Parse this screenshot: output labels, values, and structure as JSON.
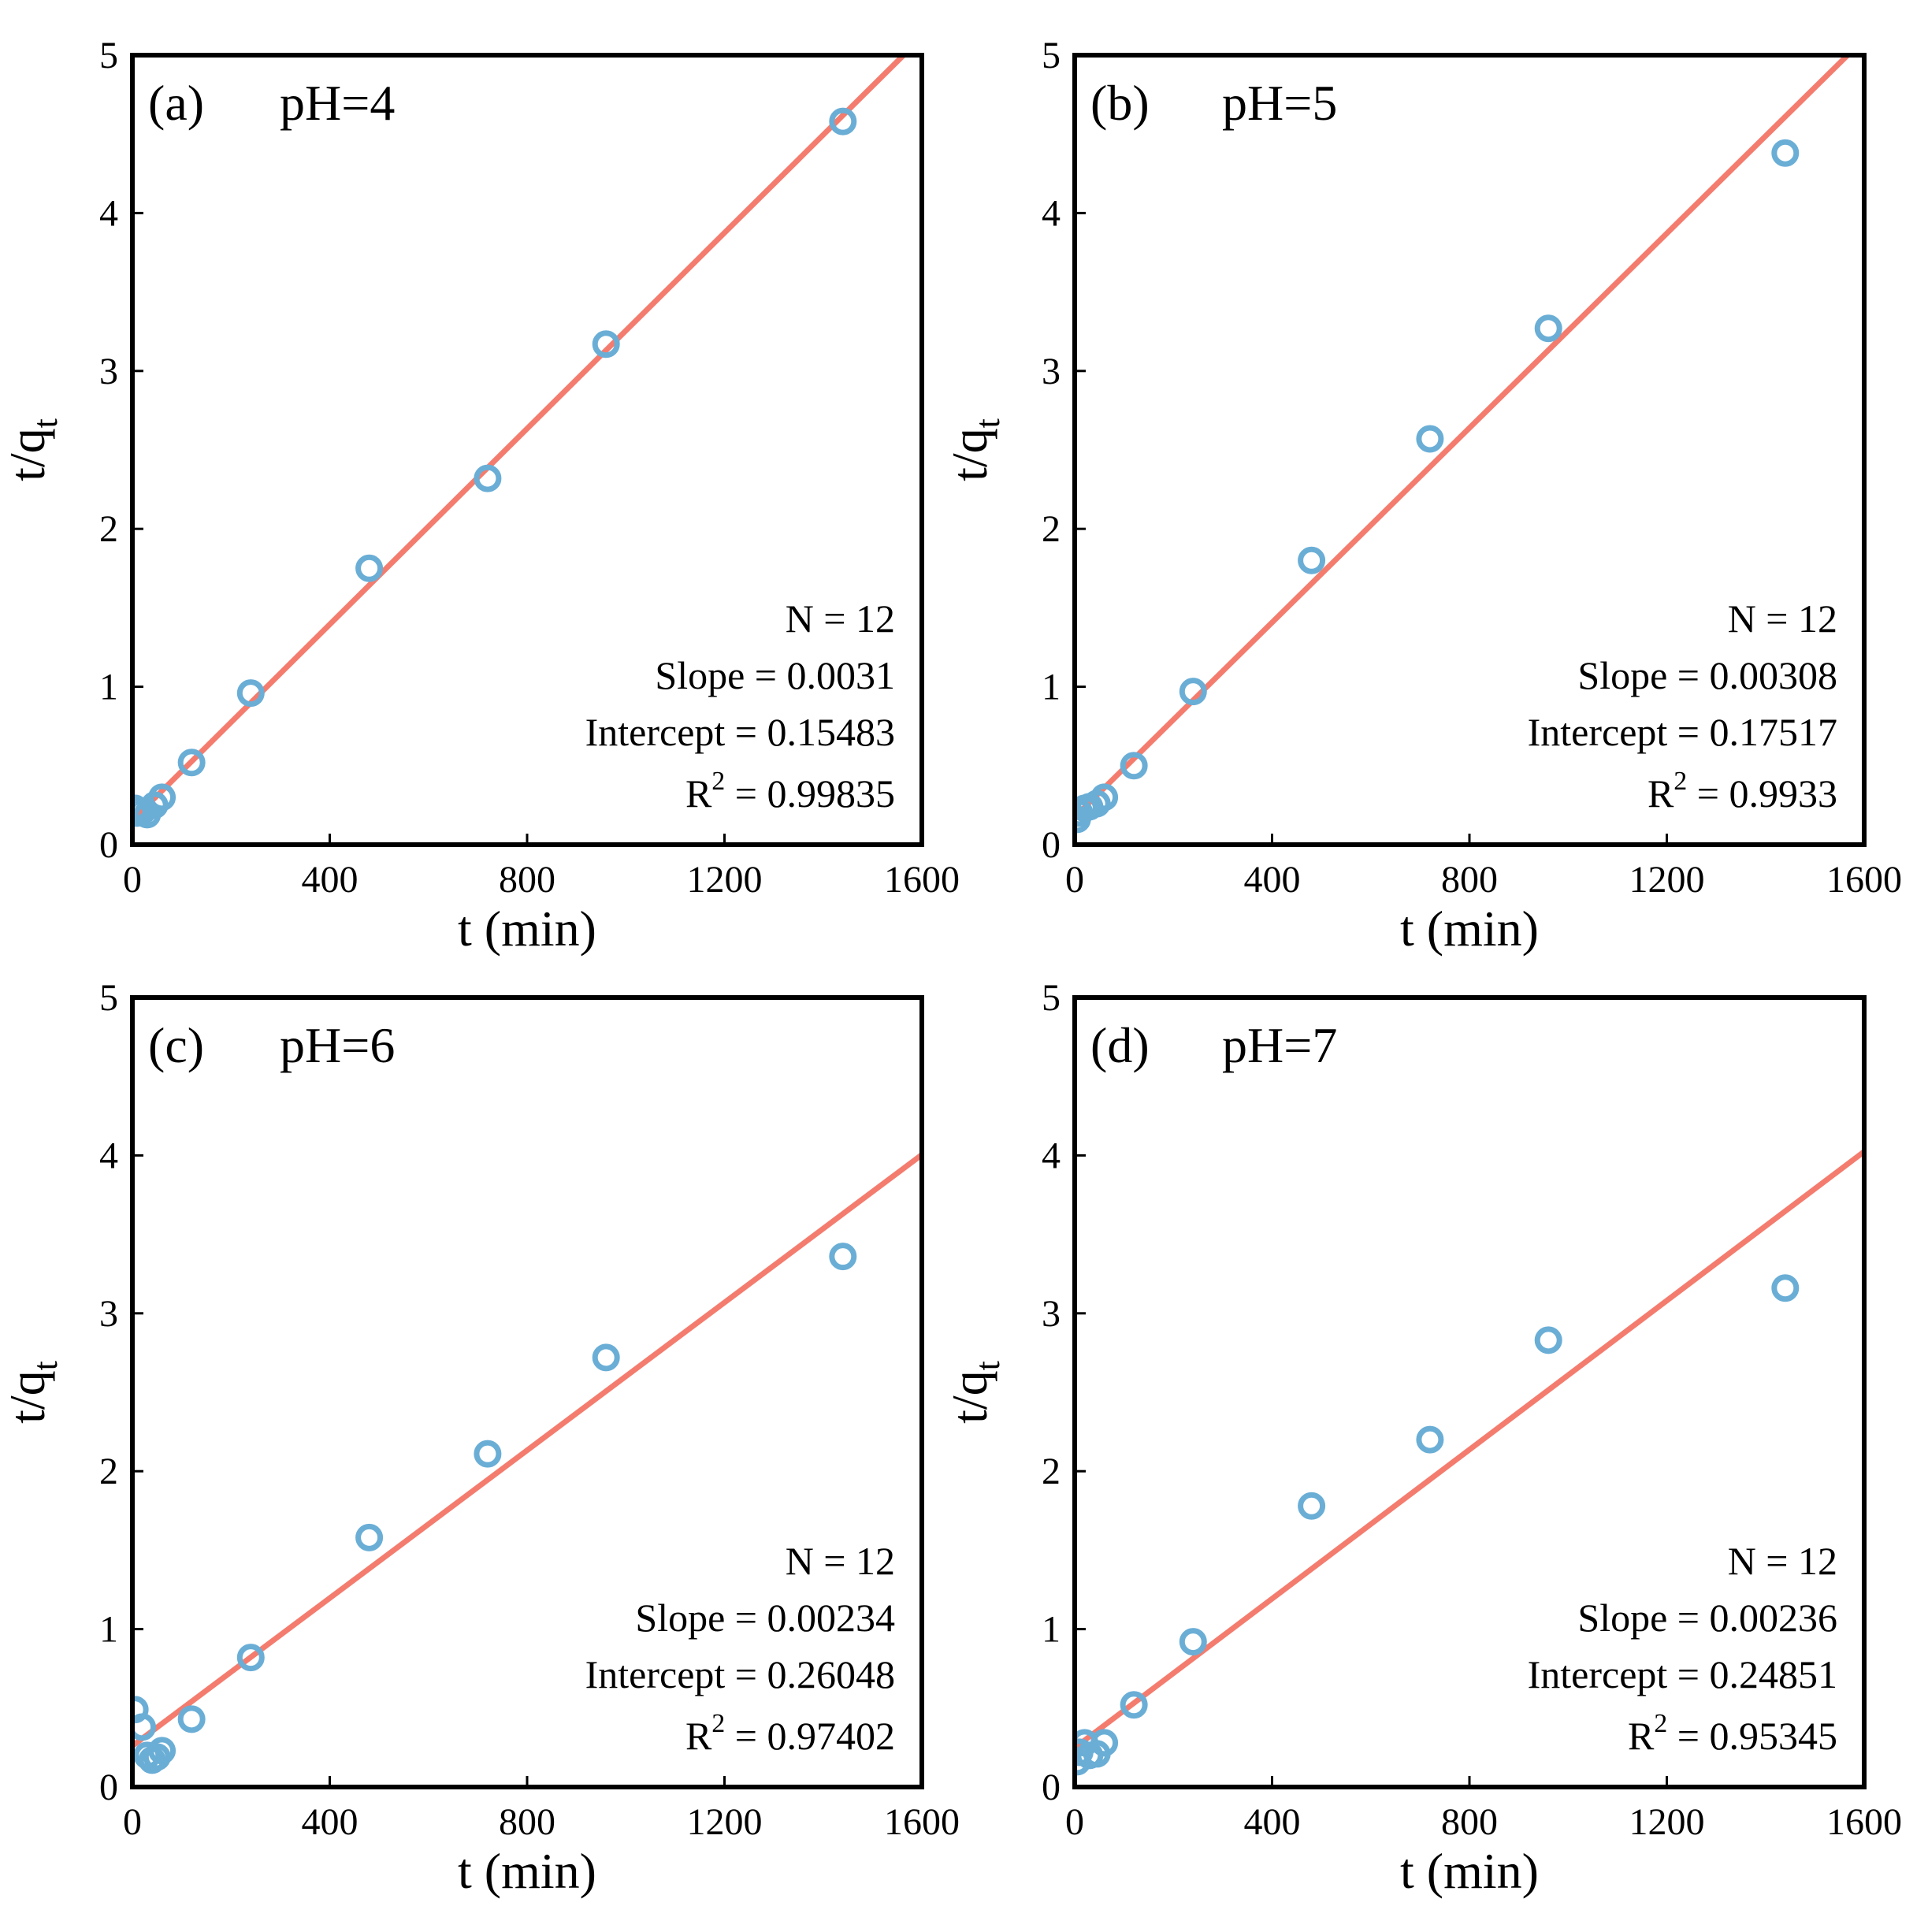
{
  "figure_title": "",
  "colors": {
    "fit_line": "#f47c6e",
    "marker": "#6aaed6",
    "axes": "#000000"
  },
  "chart_data": [
    {
      "type": "scatter",
      "panel_label": "(a)",
      "condition": "pH=4",
      "xlabel": "t (min)",
      "ylabel": "t/q",
      "ylabel_sub": "t",
      "xlim": [
        0,
        1600
      ],
      "ylim": [
        0,
        5
      ],
      "xticks": [
        "0",
        "400",
        "800",
        "1200",
        "1600"
      ],
      "yticks": [
        "0",
        "1",
        "2",
        "3",
        "4",
        "5"
      ],
      "points": {
        "x": [
          5,
          10,
          20,
          30,
          45,
          60,
          120,
          240,
          480,
          720,
          960,
          1440
        ],
        "y": [
          0.23,
          0.2,
          0.21,
          0.19,
          0.25,
          0.3,
          0.52,
          0.96,
          1.75,
          2.32,
          3.17,
          4.58
        ]
      },
      "fit": {
        "slope": 0.0031,
        "intercept": 0.15483
      },
      "stats": {
        "n": "N = 12",
        "slope": "Slope = 0.0031",
        "intercept": "Intercept = 0.15483",
        "r2_prefix": "R",
        "r2_sup": "2",
        "r2_value": " = 0.99835"
      }
    },
    {
      "type": "scatter",
      "panel_label": "(b)",
      "condition": "pH=5",
      "xlabel": "t (min)",
      "ylabel": "t/q",
      "ylabel_sub": "t",
      "xlim": [
        0,
        1600
      ],
      "ylim": [
        0,
        5
      ],
      "xticks": [
        "0",
        "400",
        "800",
        "1200",
        "1600"
      ],
      "yticks": [
        "0",
        "1",
        "2",
        "3",
        "4",
        "5"
      ],
      "points": {
        "x": [
          5,
          10,
          20,
          30,
          45,
          60,
          120,
          240,
          480,
          720,
          960,
          1440
        ],
        "y": [
          0.16,
          0.2,
          0.23,
          0.24,
          0.26,
          0.3,
          0.5,
          0.97,
          1.8,
          2.57,
          3.27,
          4.38
        ]
      },
      "fit": {
        "slope": 0.00308,
        "intercept": 0.17517
      },
      "stats": {
        "n": "N = 12",
        "slope": "Slope = 0.00308",
        "intercept": "Intercept = 0.17517",
        "r2_prefix": "R",
        "r2_sup": "2",
        "r2_value": " = 0.9933"
      }
    },
    {
      "type": "scatter",
      "panel_label": "(c)",
      "condition": "pH=6",
      "xlabel": "t (min)",
      "ylabel": "t/q",
      "ylabel_sub": "t",
      "xlim": [
        0,
        1600
      ],
      "ylim": [
        0,
        5
      ],
      "xticks": [
        "0",
        "400",
        "800",
        "1200",
        "1600"
      ],
      "yticks": [
        "0",
        "1",
        "2",
        "3",
        "4",
        "5"
      ],
      "points": {
        "x": [
          5,
          20,
          30,
          40,
          50,
          60,
          120,
          240,
          480,
          720,
          960,
          1440
        ],
        "y": [
          0.49,
          0.38,
          0.2,
          0.17,
          0.19,
          0.23,
          0.43,
          0.82,
          1.58,
          2.11,
          2.72,
          3.36
        ]
      },
      "fit": {
        "slope": 0.00234,
        "intercept": 0.26048
      },
      "stats": {
        "n": "N = 12",
        "slope": "Slope = 0.00234",
        "intercept": "Intercept = 0.26048",
        "r2_prefix": "R",
        "r2_sup": "2",
        "r2_value": " = 0.97402"
      }
    },
    {
      "type": "scatter",
      "panel_label": "(d)",
      "condition": "pH=7",
      "xlabel": "t (min)",
      "ylabel": "t/q",
      "ylabel_sub": "t",
      "xlim": [
        0,
        1600
      ],
      "ylim": [
        0,
        5
      ],
      "xticks": [
        "0",
        "400",
        "800",
        "1200",
        "1600"
      ],
      "yticks": [
        "0",
        "1",
        "2",
        "3",
        "4",
        "5"
      ],
      "points": {
        "x": [
          5,
          10,
          20,
          30,
          45,
          60,
          120,
          240,
          480,
          720,
          960,
          1440
        ],
        "y": [
          0.16,
          0.22,
          0.28,
          0.2,
          0.21,
          0.28,
          0.52,
          0.92,
          1.78,
          2.2,
          2.83,
          3.16
        ]
      },
      "fit": {
        "slope": 0.00236,
        "intercept": 0.24851
      },
      "stats": {
        "n": "N = 12",
        "slope": "Slope = 0.00236",
        "intercept": "Intercept = 0.24851",
        "r2_prefix": "R",
        "r2_sup": "2",
        "r2_value": " = 0.95345"
      }
    }
  ]
}
